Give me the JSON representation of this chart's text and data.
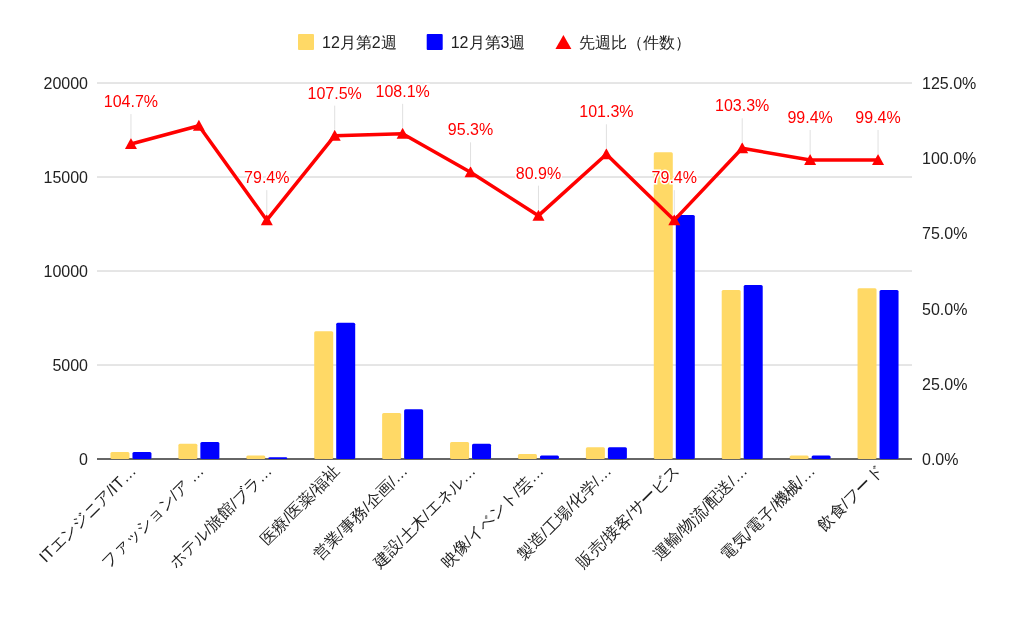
{
  "chart_data": {
    "type": "bar",
    "categories": [
      "ITエンジニア/IT…",
      "ファッション/ア …",
      "ホテル/旅館/ブラ…",
      "医療/医薬/福祉",
      "営業/事務/企画/…",
      "建設/土木/エネル…",
      "映像/イベント/芸…",
      "製造/工場/化学/…",
      "販売/接客/サービス",
      "運輸/物流/配送/…",
      "電気/電子/機械/…",
      "飲食/フード"
    ],
    "series": [
      {
        "name": "12月第2週",
        "color": "#ffd966",
        "values": [
          370,
          810,
          180,
          6790,
          2450,
          900,
          265,
          620,
          16310,
          8990,
          180,
          9080
        ]
      },
      {
        "name": "12月第3週",
        "color": "#0000ff",
        "values": [
          370,
          900,
          90,
          7250,
          2640,
          810,
          180,
          620,
          12980,
          9250,
          180,
          8990
        ]
      },
      {
        "name": "先週比（件数）",
        "type": "line",
        "axis": "y2",
        "color": "#ff0000",
        "values": [
          104.7,
          110.8,
          79.4,
          107.5,
          108.1,
          95.3,
          80.9,
          101.3,
          79.4,
          103.3,
          99.4,
          99.4
        ],
        "value_labels": [
          "104.7%",
          null,
          "79.4%",
          "107.5%",
          "108.1%",
          "95.3%",
          "80.9%",
          "101.3%",
          "79.4%",
          "103.3%",
          "99.4%",
          "99.4%"
        ]
      }
    ],
    "ylim": [
      0,
      20000
    ],
    "yticks": [
      0,
      5000,
      10000,
      15000,
      20000
    ],
    "y2lim": [
      0,
      125
    ],
    "y2ticks": [
      {
        "value": 0,
        "label": "0.0%"
      },
      {
        "value": 25,
        "label": "25.0%"
      },
      {
        "value": 50,
        "label": "50.0%"
      },
      {
        "value": 75,
        "label": "75.0%"
      },
      {
        "value": 100,
        "label": "100.0%"
      },
      {
        "value": 125,
        "label": "125.0%"
      }
    ],
    "grid": "y",
    "legend": "top",
    "marker": "triangle"
  }
}
